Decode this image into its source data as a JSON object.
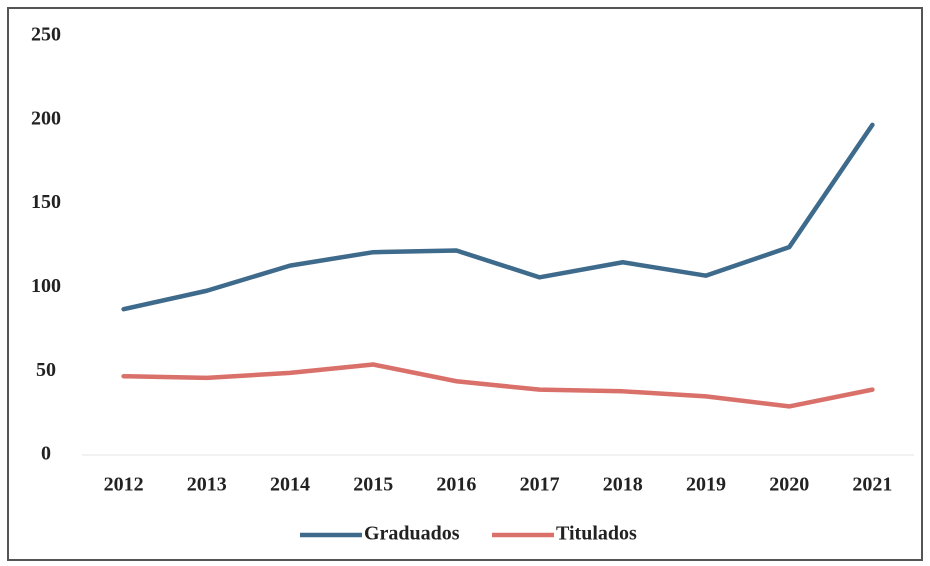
{
  "chart_data": {
    "type": "line",
    "categories": [
      "2012",
      "2013",
      "2014",
      "2015",
      "2016",
      "2017",
      "2018",
      "2019",
      "2020",
      "2021"
    ],
    "series": [
      {
        "name": "Graduados",
        "color": "#3e6a8c",
        "values": [
          87,
          98,
          113,
          121,
          122,
          106,
          115,
          107,
          124,
          197
        ]
      },
      {
        "name": "Titulados",
        "color": "#d9706a",
        "values": [
          47,
          46,
          49,
          54,
          44,
          39,
          38,
          35,
          29,
          39
        ]
      }
    ],
    "ylim": [
      0,
      250
    ],
    "yticks": [
      0,
      50,
      100,
      150,
      200,
      250
    ],
    "grid": false,
    "legend": "bottom"
  }
}
